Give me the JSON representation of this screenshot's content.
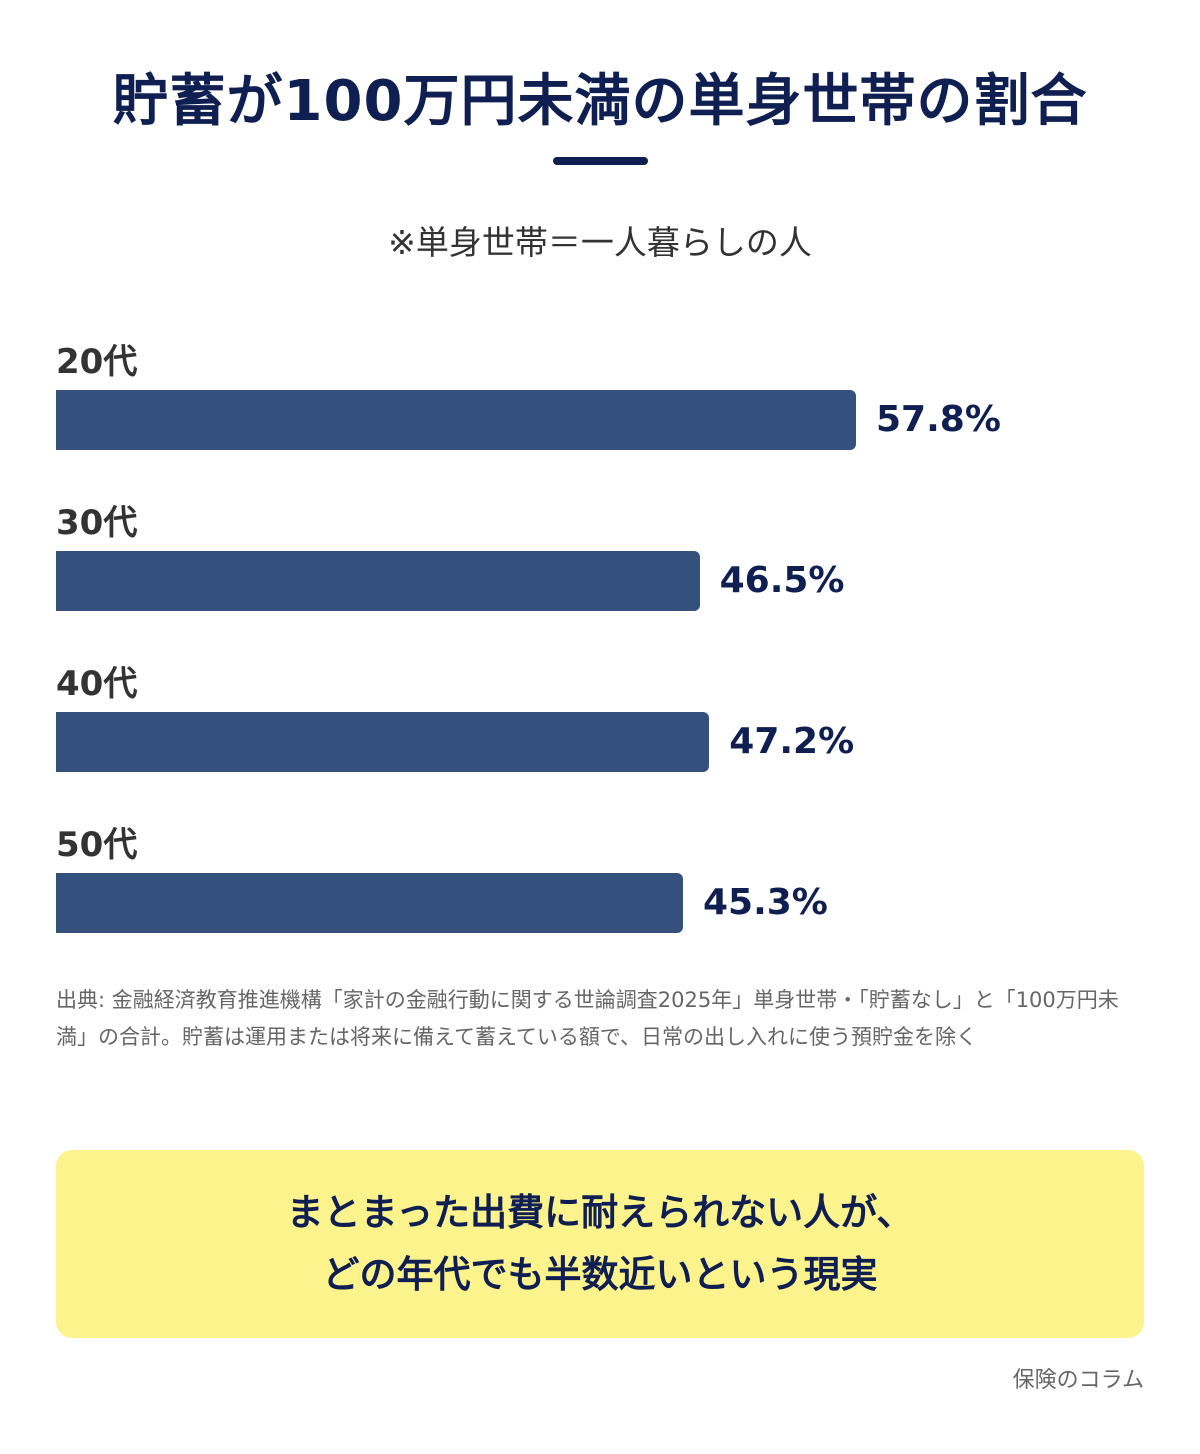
{
  "title": "貯蓄が100万円未満の単身世帯の割合",
  "subtitle": "※単身世帯＝一人暮らしの人",
  "chart_data": {
    "type": "bar",
    "orientation": "horizontal",
    "categories": [
      "20代",
      "30代",
      "40代",
      "50代"
    ],
    "values": [
      57.8,
      46.5,
      47.2,
      45.3
    ],
    "value_labels": [
      "57.8%",
      "46.5%",
      "47.2%",
      "45.3%"
    ],
    "unit": "%",
    "color": "#34517e",
    "label_color": "#0f1f52"
  },
  "source": "出典: 金融経済教育推進機構「家計の金融行動に関する世論調査2025年」単身世帯・「貯蓄なし」と「100万円未満」の合計。貯蓄は運用または将来に備えて蓄えている額で、日常の出し入れに使う預貯金を除く",
  "callout": {
    "line1": "まとまった出費に耐えられない人が、",
    "line2": "どの年代でも半数近いという現実",
    "background": "#fdf38d"
  },
  "credit": "保険のコラム"
}
